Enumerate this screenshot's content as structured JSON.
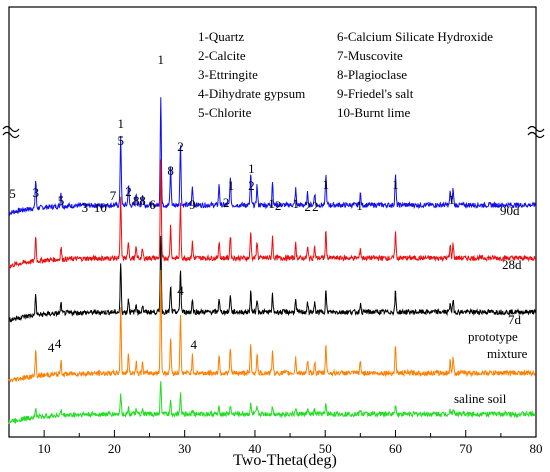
{
  "chart_data": {
    "type": "line",
    "xlabel": "Two-Theta(deg)",
    "ylabel": "",
    "xlim": [
      5,
      80
    ],
    "xticks": [
      10,
      20,
      30,
      40,
      50,
      60,
      70,
      80
    ],
    "legend": [
      "1-Quartz",
      "2-Calcite",
      "3-Ettringite",
      "4-Dihydrate gypsum",
      "5-Chlorite",
      "6-Calcium Silicate Hydroxide",
      "7-Muscovite",
      "8-Plagioclase",
      "9-Friedel's salt",
      "10-Burnt lime"
    ],
    "series": [
      {
        "name": "90d",
        "color": "#1010ee"
      },
      {
        "name": "28d",
        "color": "#ee1010"
      },
      {
        "name": "7d",
        "color": "#000000"
      },
      {
        "name": "prototype mixture",
        "color": "#ff8000"
      },
      {
        "name": "saline soil",
        "color": "#22dd22"
      }
    ],
    "peak_positions": [
      8.8,
      12.4,
      20.9,
      22.0,
      23.1,
      24.0,
      26.6,
      28.0,
      29.4,
      31.1,
      34.9,
      36.5,
      39.4,
      40.3,
      42.5,
      45.8,
      47.5,
      48.5,
      50.1,
      55.0,
      60.0,
      67.8,
      68.2
    ],
    "peak_annotations": [
      {
        "x": 5.5,
        "text": "5"
      },
      {
        "x": 8.8,
        "text": "3"
      },
      {
        "x": 12.4,
        "text": "5"
      },
      {
        "x": 15.8,
        "text": "3"
      },
      {
        "x": 18.0,
        "text": "10"
      },
      {
        "x": 19.8,
        "text": "7"
      },
      {
        "x": 22.0,
        "text": "2"
      },
      {
        "x": 23.1,
        "text": "8"
      },
      {
        "x": 24.0,
        "text": "8"
      },
      {
        "x": 25.4,
        "text": "6"
      },
      {
        "x": 20.9,
        "text": "1"
      },
      {
        "x": 20.9,
        "text": "5"
      },
      {
        "x": 26.6,
        "text": "1"
      },
      {
        "x": 28.0,
        "text": "8"
      },
      {
        "x": 29.4,
        "text": "2"
      },
      {
        "x": 31.1,
        "text": "9"
      },
      {
        "x": 35.9,
        "text": "2"
      },
      {
        "x": 36.6,
        "text": "1"
      },
      {
        "x": 39.5,
        "text": "1"
      },
      {
        "x": 39.5,
        "text": "2"
      },
      {
        "x": 42.4,
        "text": "1"
      },
      {
        "x": 43.3,
        "text": "2"
      },
      {
        "x": 45.8,
        "text": "1"
      },
      {
        "x": 47.5,
        "text": "2"
      },
      {
        "x": 48.6,
        "text": "2"
      },
      {
        "x": 50.1,
        "text": "1"
      },
      {
        "x": 54.9,
        "text": "1"
      },
      {
        "x": 60.0,
        "text": "1"
      },
      {
        "x": 68.0,
        "text": "1"
      },
      {
        "x": 29.4,
        "text": "4"
      },
      {
        "x": 31.3,
        "text": "4"
      },
      {
        "x": 11.0,
        "text": "4"
      },
      {
        "x": 12.0,
        "text": "4"
      }
    ]
  }
}
